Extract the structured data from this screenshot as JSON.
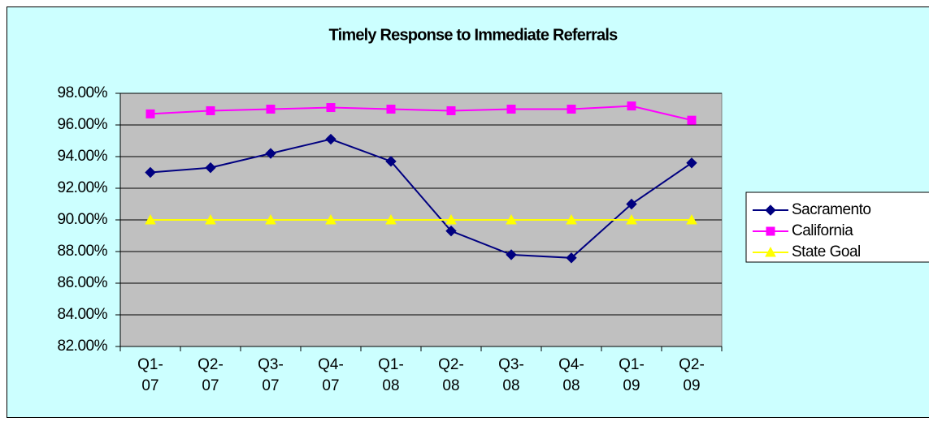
{
  "chart_data": {
    "type": "line",
    "title": "Timely Response to Immediate Referrals",
    "categories": [
      "Q1-07",
      "Q2-07",
      "Q3-07",
      "Q4-07",
      "Q1-08",
      "Q2-08",
      "Q3-08",
      "Q4-08",
      "Q1-09",
      "Q2-09"
    ],
    "series": [
      {
        "name": "Sacramento",
        "color": "#000080",
        "marker": "diamond",
        "values": [
          93.0,
          93.3,
          94.2,
          95.1,
          93.7,
          89.3,
          87.8,
          87.6,
          91.0,
          93.6
        ]
      },
      {
        "name": "California",
        "color": "#ff00ff",
        "marker": "square",
        "values": [
          96.7,
          96.9,
          97.0,
          97.1,
          97.0,
          96.9,
          97.0,
          97.0,
          97.2,
          96.3
        ]
      },
      {
        "name": "State Goal",
        "color": "#ffff00",
        "marker": "triangle",
        "values": [
          90,
          90,
          90,
          90,
          90,
          90,
          90,
          90,
          90,
          90
        ]
      }
    ],
    "ylim": [
      82,
      98
    ],
    "yticks": [
      {
        "value": 82,
        "label": "82.00%"
      },
      {
        "value": 84,
        "label": "84.00%"
      },
      {
        "value": 86,
        "label": "86.00%"
      },
      {
        "value": 88,
        "label": "88.00%"
      },
      {
        "value": 90,
        "label": "90.00%"
      },
      {
        "value": 92,
        "label": "92.00%"
      },
      {
        "value": 94,
        "label": "94.00%"
      },
      {
        "value": 96,
        "label": "96.00%"
      },
      {
        "value": 98,
        "label": "98.00%"
      }
    ],
    "grid": true,
    "legend": "right",
    "plot_background": "#c0c0c0"
  }
}
